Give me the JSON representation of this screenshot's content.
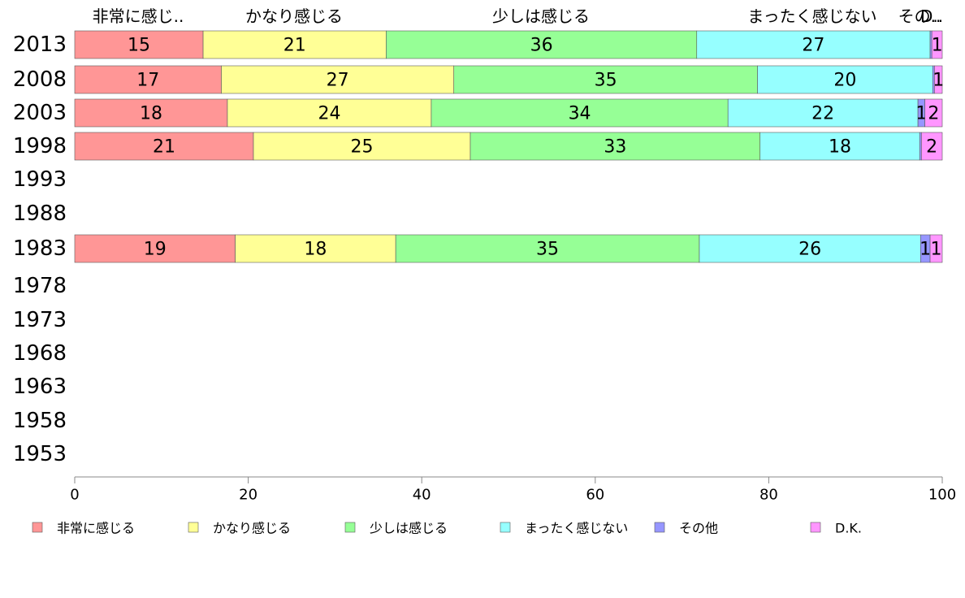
{
  "chart_data": {
    "type": "bar",
    "orientation": "horizontal",
    "stacked": true,
    "categories": [
      "2013",
      "2008",
      "2003",
      "1998",
      "1993",
      "1988",
      "1983",
      "1978",
      "1973",
      "1968",
      "1963",
      "1958",
      "1953"
    ],
    "series": [
      {
        "name": "非常に感じる",
        "header_label": "非常に感じ..",
        "color": "#ff9696",
        "values": [
          15,
          17,
          18,
          21,
          null,
          null,
          19,
          null,
          null,
          null,
          null,
          null,
          null
        ],
        "fractions": [
          14.8,
          16.9,
          17.6,
          20.6,
          null,
          null,
          18.5,
          null,
          null,
          null,
          null,
          null,
          null
        ]
      },
      {
        "name": "かなり感じる",
        "header_label": "かなり感じる",
        "color": "#ffff96",
        "values": [
          21,
          27,
          24,
          25,
          null,
          null,
          18,
          null,
          null,
          null,
          null,
          null,
          null
        ],
        "fractions": [
          21.1,
          26.8,
          23.5,
          25.0,
          null,
          null,
          18.5,
          null,
          null,
          null,
          null,
          null,
          null
        ]
      },
      {
        "name": "少しは感じる",
        "header_label": "少しは感じる",
        "color": "#96ff96",
        "values": [
          36,
          35,
          34,
          33,
          null,
          null,
          35,
          null,
          null,
          null,
          null,
          null,
          null
        ],
        "fractions": [
          35.8,
          35.0,
          34.2,
          33.4,
          null,
          null,
          35.0,
          null,
          null,
          null,
          null,
          null,
          null
        ]
      },
      {
        "name": "まったく感じない",
        "header_label": "まったく感じない",
        "color": "#96ffff",
        "values": [
          27,
          20,
          22,
          18,
          null,
          null,
          26,
          null,
          null,
          null,
          null,
          null,
          null
        ],
        "fractions": [
          26.9,
          20.2,
          21.9,
          18.4,
          null,
          null,
          25.5,
          null,
          null,
          null,
          null,
          null,
          null
        ]
      },
      {
        "name": "その他",
        "header_label": "その..",
        "color": "#9696ff",
        "values": [
          0,
          0,
          1,
          0,
          null,
          null,
          1,
          null,
          null,
          null,
          null,
          null,
          null
        ],
        "fractions": [
          0.2,
          0.2,
          0.8,
          0.2,
          null,
          null,
          1.1,
          null,
          null,
          null,
          null,
          null,
          null
        ]
      },
      {
        "name": "D.K.",
        "header_label": "D..",
        "color": "#ff96ff",
        "values": [
          1,
          1,
          2,
          2,
          null,
          null,
          1,
          null,
          null,
          null,
          null,
          null,
          null
        ],
        "fractions": [
          1.2,
          0.9,
          2.0,
          2.4,
          null,
          null,
          1.4,
          null,
          null,
          null,
          null,
          null,
          null
        ]
      }
    ],
    "xlim": [
      0,
      100
    ],
    "xticks": [
      "0",
      "20",
      "40",
      "60",
      "80",
      "100"
    ],
    "legend_position": "bottom",
    "grid": false
  }
}
